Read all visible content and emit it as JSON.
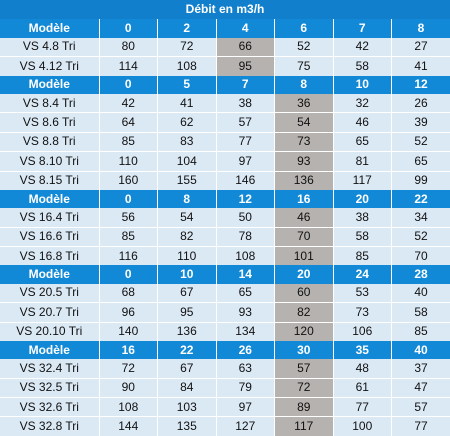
{
  "title": "Débit en m3/h",
  "sections": [
    {
      "header_label": "Modèle",
      "flows": [
        "0",
        "2",
        "4",
        "6",
        "7",
        "8"
      ],
      "highlight_col": 2,
      "rows": [
        {
          "model": "VS 4.8 Tri",
          "values": [
            "80",
            "72",
            "66",
            "52",
            "42",
            "27"
          ]
        },
        {
          "model": "VS 4.12 Tri",
          "values": [
            "114",
            "108",
            "95",
            "75",
            "58",
            "41"
          ]
        }
      ]
    },
    {
      "header_label": "Modèle",
      "flows": [
        "0",
        "5",
        "7",
        "8",
        "10",
        "12"
      ],
      "highlight_col": 3,
      "rows": [
        {
          "model": "VS 8.4 Tri",
          "values": [
            "42",
            "41",
            "38",
            "36",
            "32",
            "26"
          ]
        },
        {
          "model": "VS 8.6 Tri",
          "values": [
            "64",
            "62",
            "57",
            "54",
            "46",
            "39"
          ]
        },
        {
          "model": "VS 8.8 Tri",
          "values": [
            "85",
            "83",
            "77",
            "73",
            "65",
            "52"
          ]
        },
        {
          "model": "VS 8.10 Tri",
          "values": [
            "110",
            "104",
            "97",
            "93",
            "81",
            "65"
          ]
        },
        {
          "model": "VS 8.15 Tri",
          "values": [
            "160",
            "155",
            "146",
            "136",
            "117",
            "99"
          ]
        }
      ]
    },
    {
      "header_label": "Modèle",
      "flows": [
        "0",
        "8",
        "12",
        "16",
        "20",
        "22"
      ],
      "highlight_col": 3,
      "rows": [
        {
          "model": "VS 16.4 Tri",
          "values": [
            "56",
            "54",
            "50",
            "46",
            "38",
            "34"
          ]
        },
        {
          "model": "VS 16.6 Tri",
          "values": [
            "85",
            "82",
            "78",
            "70",
            "58",
            "52"
          ]
        },
        {
          "model": "VS 16.8 Tri",
          "values": [
            "116",
            "110",
            "108",
            "101",
            "85",
            "70"
          ]
        }
      ]
    },
    {
      "header_label": "Modèle",
      "flows": [
        "0",
        "10",
        "14",
        "20",
        "24",
        "28"
      ],
      "highlight_col": 3,
      "rows": [
        {
          "model": "VS 20.5 Tri",
          "values": [
            "68",
            "67",
            "65",
            "60",
            "53",
            "40"
          ]
        },
        {
          "model": "VS 20.7 Tri",
          "values": [
            "96",
            "95",
            "93",
            "82",
            "73",
            "58"
          ]
        },
        {
          "model": "VS 20.10 Tri",
          "values": [
            "140",
            "136",
            "134",
            "120",
            "106",
            "85"
          ]
        }
      ]
    },
    {
      "header_label": "Modèle",
      "flows": [
        "16",
        "22",
        "26",
        "30",
        "35",
        "40"
      ],
      "highlight_col": 3,
      "rows": [
        {
          "model": "VS 32.4 Tri",
          "values": [
            "72",
            "67",
            "63",
            "57",
            "48",
            "37"
          ]
        },
        {
          "model": "VS 32.5 Tri",
          "values": [
            "90",
            "84",
            "79",
            "72",
            "61",
            "47"
          ]
        },
        {
          "model": "VS 32.6 Tri",
          "values": [
            "108",
            "103",
            "97",
            "89",
            "77",
            "57"
          ]
        },
        {
          "model": "VS 32.8 Tri",
          "values": [
            "144",
            "135",
            "127",
            "117",
            "100",
            "77"
          ]
        }
      ]
    }
  ]
}
